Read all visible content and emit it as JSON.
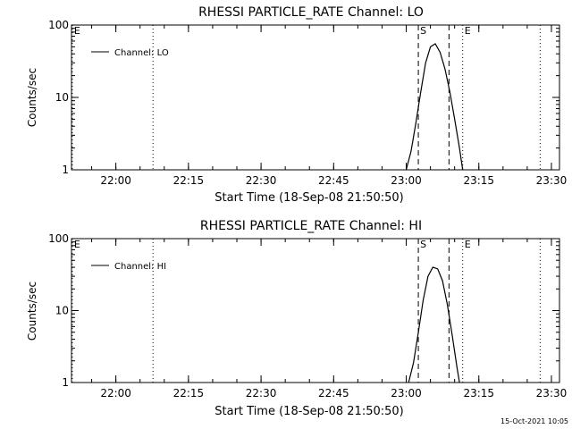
{
  "chart_data": [
    {
      "type": "line",
      "title": "RHESSI PARTICLE_RATE Channel: LO",
      "xlabel": "Start Time (18-Sep-08 21:50:50)",
      "ylabel": "Counts/sec",
      "y_scale": "log",
      "ylim": [
        1,
        100
      ],
      "xlim": [
        "21:50:50",
        "23:31:40"
      ],
      "x_ticks": [
        "22:00",
        "22:15",
        "22:30",
        "22:45",
        "23:00",
        "23:15",
        "23:30"
      ],
      "y_ticks": [
        "1",
        "10",
        "100"
      ],
      "legend": {
        "entries": [
          "Channel: LO"
        ],
        "position": "top-left"
      },
      "grid": false,
      "markers": [
        {
          "label": "E",
          "time": "21:51:00",
          "style": "dotted"
        },
        {
          "label": "",
          "time": "22:07:40",
          "style": "dotted"
        },
        {
          "label": "S",
          "time": "23:02:30",
          "style": "dashed"
        },
        {
          "label": "",
          "time": "23:08:50",
          "style": "dashed"
        },
        {
          "label": "E",
          "time": "23:11:40",
          "style": "dotted"
        },
        {
          "label": "",
          "time": "23:27:40",
          "style": "dotted"
        }
      ],
      "series": [
        {
          "name": "Channel: LO",
          "x": [
            "23:00:00",
            "23:01:00",
            "23:02:00",
            "23:03:00",
            "23:04:00",
            "23:05:00",
            "23:06:00",
            "23:07:00",
            "23:08:00",
            "23:09:00",
            "23:10:00",
            "23:11:00",
            "23:11:40"
          ],
          "values": [
            1.0,
            1.8,
            4.5,
            12,
            30,
            50,
            55,
            42,
            25,
            12,
            5,
            2,
            1.0
          ]
        }
      ]
    },
    {
      "type": "line",
      "title": "RHESSI PARTICLE_RATE Channel: HI",
      "xlabel": "Start Time (18-Sep-08 21:50:50)",
      "ylabel": "Counts/sec",
      "y_scale": "log",
      "ylim": [
        1,
        100
      ],
      "xlim": [
        "21:50:50",
        "23:31:40"
      ],
      "x_ticks": [
        "22:00",
        "22:15",
        "22:30",
        "22:45",
        "23:00",
        "23:15",
        "23:30"
      ],
      "y_ticks": [
        "1",
        "10",
        "100"
      ],
      "legend": {
        "entries": [
          "Channel: HI"
        ],
        "position": "top-left"
      },
      "grid": false,
      "markers": [
        {
          "label": "E",
          "time": "21:51:00",
          "style": "dotted"
        },
        {
          "label": "",
          "time": "22:07:40",
          "style": "dotted"
        },
        {
          "label": "S",
          "time": "23:02:30",
          "style": "dashed"
        },
        {
          "label": "",
          "time": "23:08:50",
          "style": "dashed"
        },
        {
          "label": "E",
          "time": "23:11:40",
          "style": "dotted"
        },
        {
          "label": "",
          "time": "23:27:40",
          "style": "dotted"
        }
      ],
      "series": [
        {
          "name": "Channel: HI",
          "x": [
            "23:00:30",
            "23:01:30",
            "23:02:30",
            "23:03:30",
            "23:04:30",
            "23:05:30",
            "23:06:30",
            "23:07:30",
            "23:08:30",
            "23:09:30",
            "23:10:30",
            "23:11:00"
          ],
          "values": [
            1.0,
            1.9,
            5,
            14,
            30,
            40,
            38,
            26,
            12,
            4.5,
            1.6,
            1.0
          ]
        }
      ]
    }
  ],
  "footer": {
    "timestamp": "15-Oct-2021 10:05"
  }
}
